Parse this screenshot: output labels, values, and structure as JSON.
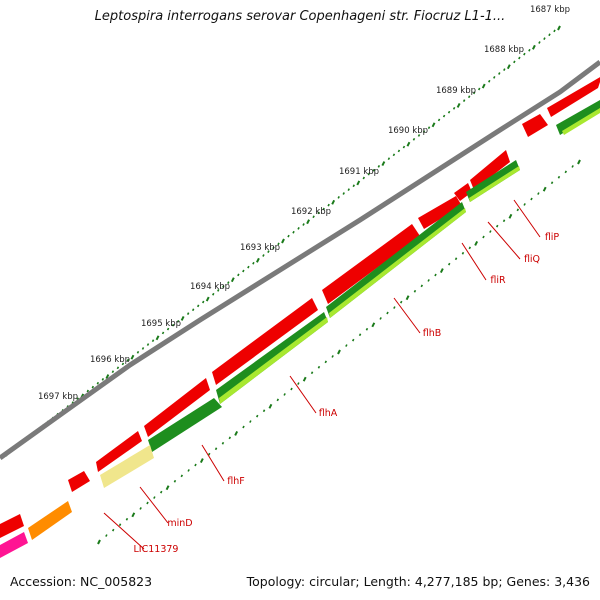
{
  "title": "Leptospira interrogans serovar Copenhageni str. Fiocruz L1-1...",
  "footer": {
    "accession": "Accession: NC_005823",
    "stats": "Topology: circular; Length: 4,277,185 bp; Genes: 3,436"
  },
  "colors": {
    "backbone": "#7a7a7a",
    "red": "#ee0000",
    "dark_green": "#1e8e1e",
    "light_green": "#a8e830",
    "pale_yellow": "#f0e68c",
    "orange": "#ff8c00",
    "magenta": "#ff1493",
    "tick": "#1a7a1a",
    "label": "#cc0000"
  },
  "scale": {
    "unit": "kbp",
    "labels": [
      "1687 kbp",
      "1688 kbp",
      "1689 kbp",
      "1690 kbp",
      "1691 kbp",
      "1692 kbp",
      "1693 kbp",
      "1694 kbp",
      "1695 kbp",
      "1696 kbp",
      "1697 kbp"
    ]
  },
  "genes": [
    "fliP",
    "fliQ",
    "fliR",
    "flhB",
    "flhA",
    "flhF",
    "minD",
    "LIC11379"
  ]
}
